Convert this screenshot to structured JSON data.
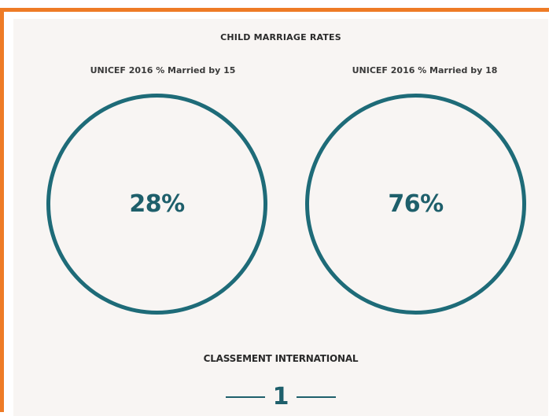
{
  "section": {
    "title": "CHILD MARRIAGE RATES"
  },
  "stats": [
    {
      "label": "UNICEF 2016 % Married by 15",
      "value": "28%"
    },
    {
      "label": "UNICEF 2016 % Married by 18",
      "value": "76%"
    }
  ],
  "ranking": {
    "title": "CLASSEMENT INTERNATIONAL",
    "value": "1"
  },
  "colors": {
    "frame_accent": "#ee7b26",
    "circle_stroke": "#1e6b78",
    "value_text": "#1e5f6b",
    "panel_background": "#f8f5f3"
  }
}
